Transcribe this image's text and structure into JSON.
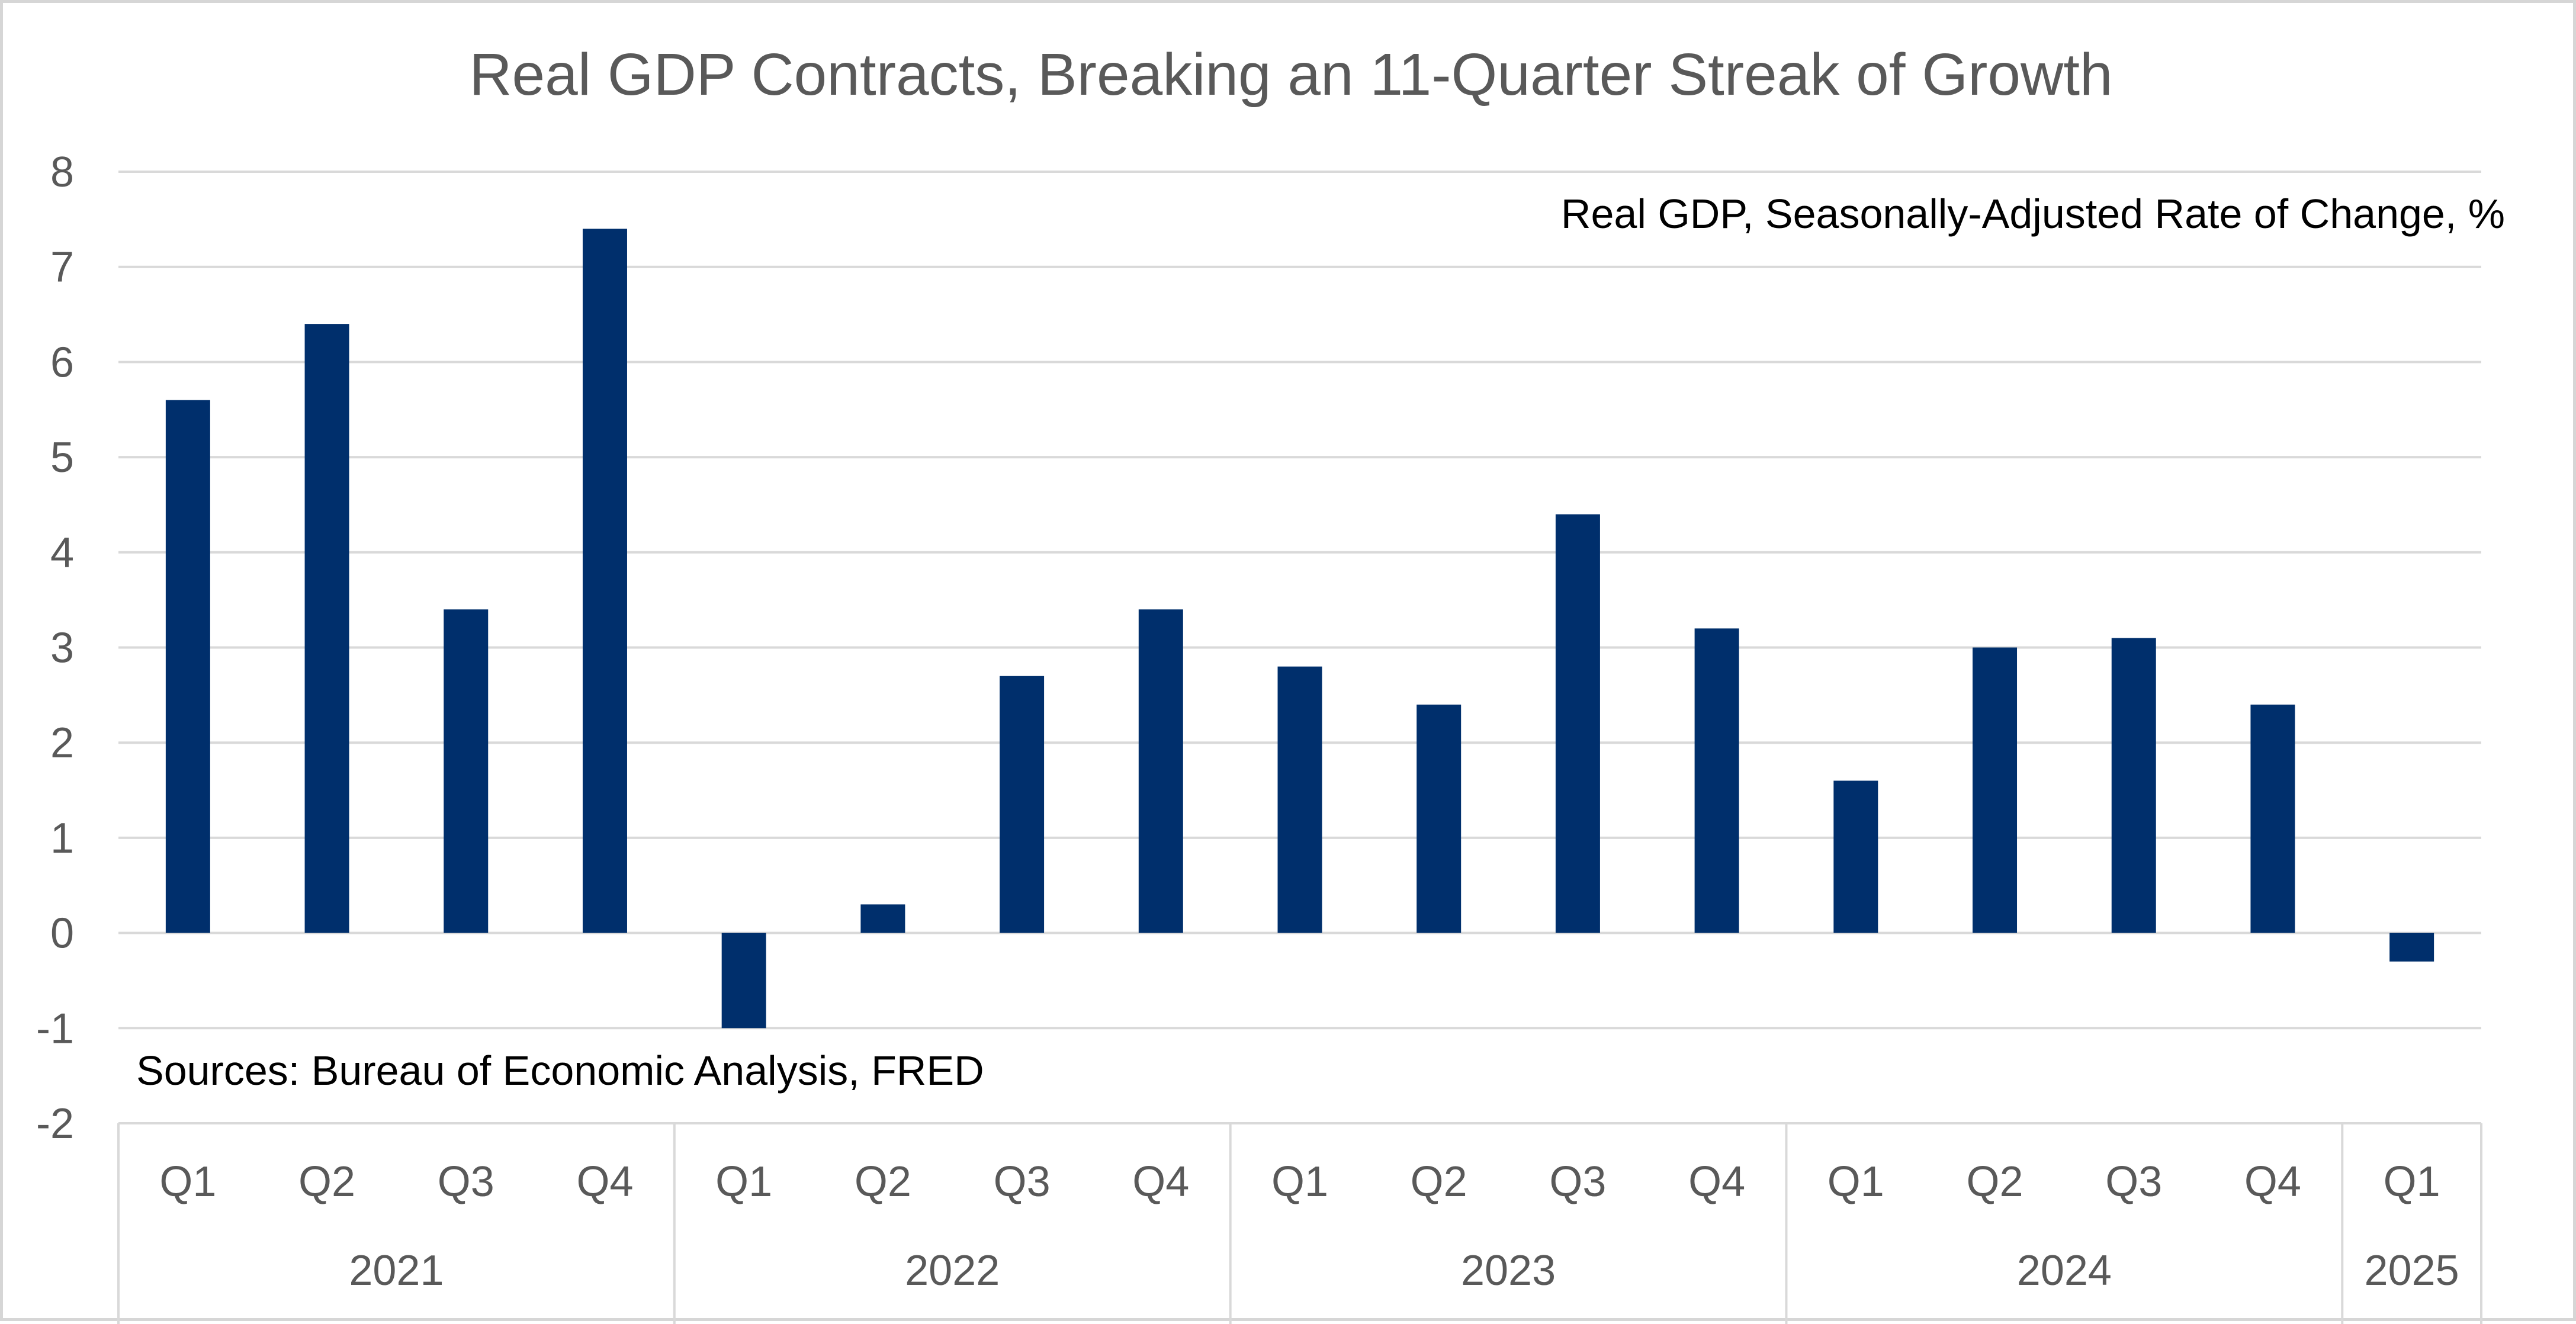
{
  "chart_data": {
    "type": "bar",
    "title": "Real GDP Contracts, Breaking an 11-Quarter Streak of Growth",
    "series_label": "Real GDP, Seasonally-Adjusted Rate of Change, %",
    "source_note": "Sources: Bureau of Economic Analysis, FRED",
    "xlabel": "",
    "ylabel": "",
    "ylim": [
      -2,
      8
    ],
    "yticks": [
      -2,
      -1,
      0,
      1,
      2,
      3,
      4,
      5,
      6,
      7,
      8
    ],
    "grid": true,
    "legend": "none",
    "categories": [
      {
        "quarter": "Q1",
        "year": "2021"
      },
      {
        "quarter": "Q2",
        "year": "2021"
      },
      {
        "quarter": "Q3",
        "year": "2021"
      },
      {
        "quarter": "Q4",
        "year": "2021"
      },
      {
        "quarter": "Q1",
        "year": "2022"
      },
      {
        "quarter": "Q2",
        "year": "2022"
      },
      {
        "quarter": "Q3",
        "year": "2022"
      },
      {
        "quarter": "Q4",
        "year": "2022"
      },
      {
        "quarter": "Q1",
        "year": "2023"
      },
      {
        "quarter": "Q2",
        "year": "2023"
      },
      {
        "quarter": "Q3",
        "year": "2023"
      },
      {
        "quarter": "Q4",
        "year": "2023"
      },
      {
        "quarter": "Q1",
        "year": "2024"
      },
      {
        "quarter": "Q2",
        "year": "2024"
      },
      {
        "quarter": "Q3",
        "year": "2024"
      },
      {
        "quarter": "Q4",
        "year": "2024"
      },
      {
        "quarter": "Q1",
        "year": "2025"
      }
    ],
    "years": [
      "2021",
      "2022",
      "2023",
      "2024",
      "2025"
    ],
    "values": [
      5.6,
      6.4,
      3.4,
      7.4,
      -1.0,
      0.3,
      2.7,
      3.4,
      2.8,
      2.4,
      4.4,
      3.2,
      1.6,
      3.0,
      3.1,
      2.4,
      -0.3
    ],
    "colors": {
      "bar": "#002f6c",
      "grid": "#d9d9d9",
      "axis_text": "#595959",
      "title": "#595959",
      "note": "#000000"
    }
  }
}
